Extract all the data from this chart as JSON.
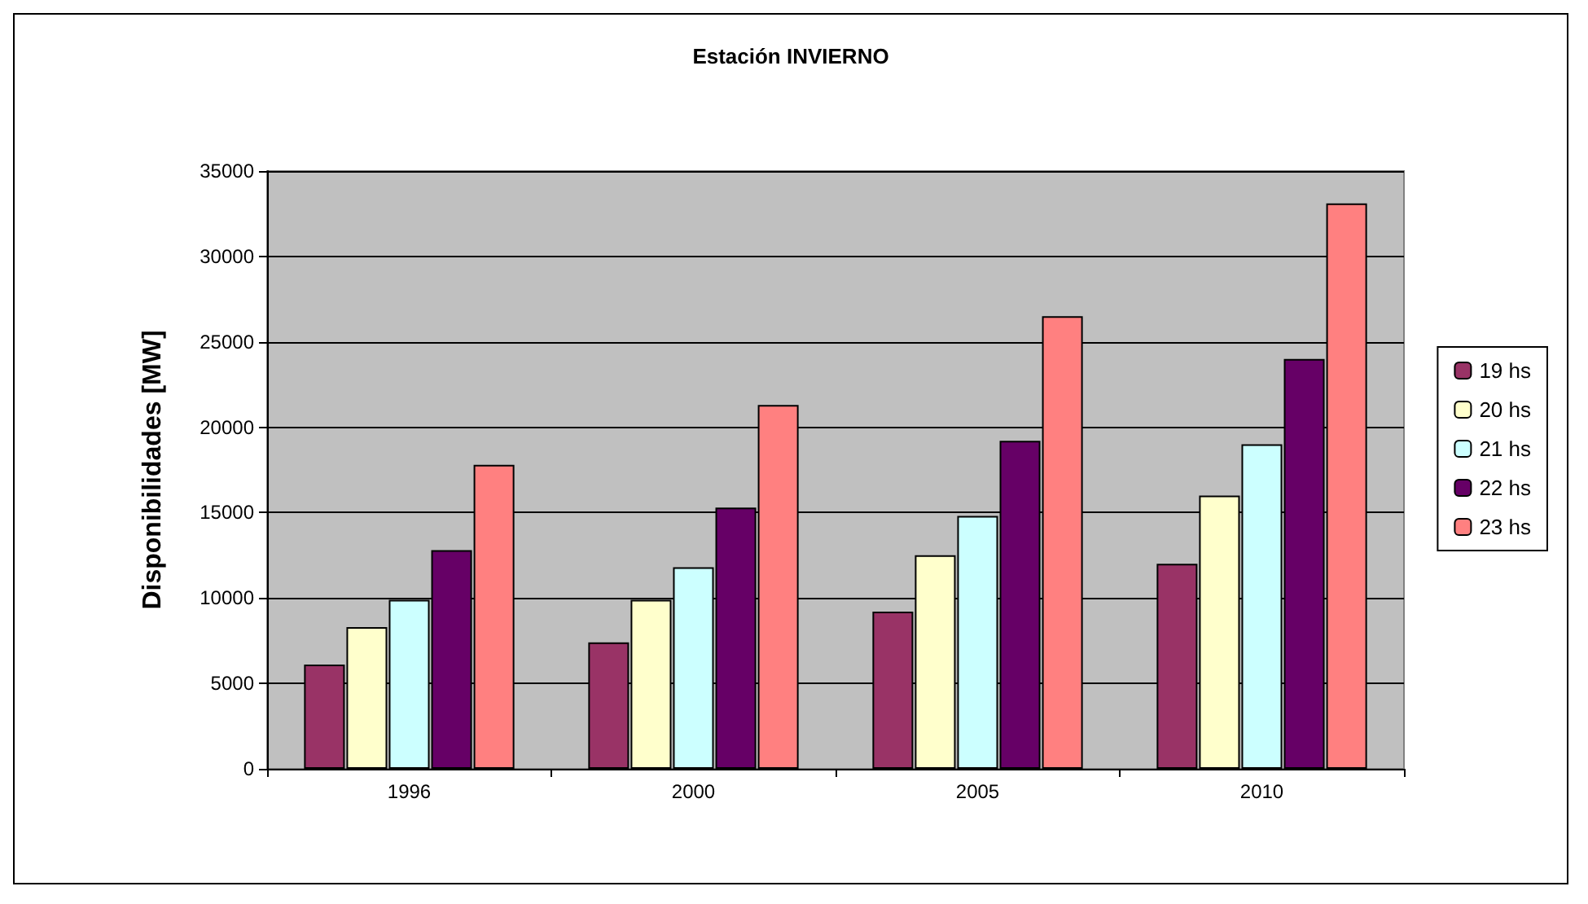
{
  "chart_data": {
    "type": "bar",
    "title": "Estación INVIERNO",
    "ylabel": "Disponibilidades [MW]",
    "categories": [
      "1996",
      "2000",
      "2005",
      "2010"
    ],
    "series": [
      {
        "name": "19 hs",
        "color": "#993366",
        "values": [
          6100,
          7400,
          9200,
          12000
        ]
      },
      {
        "name": "20 hs",
        "color": "#ffffcc",
        "values": [
          8300,
          9900,
          12500,
          16000
        ]
      },
      {
        "name": "21 hs",
        "color": "#ccffff",
        "values": [
          9900,
          11800,
          14800,
          19000
        ]
      },
      {
        "name": "22 hs",
        "color": "#660066",
        "values": [
          12800,
          15300,
          19200,
          24000
        ]
      },
      {
        "name": "23 hs",
        "color": "#ff8080",
        "values": [
          17800,
          21300,
          26500,
          33100
        ]
      }
    ],
    "ylim": [
      0,
      35000
    ],
    "yticks": [
      0,
      5000,
      10000,
      15000,
      20000,
      25000,
      30000,
      35000
    ],
    "grid": "y",
    "legend": "right"
  }
}
